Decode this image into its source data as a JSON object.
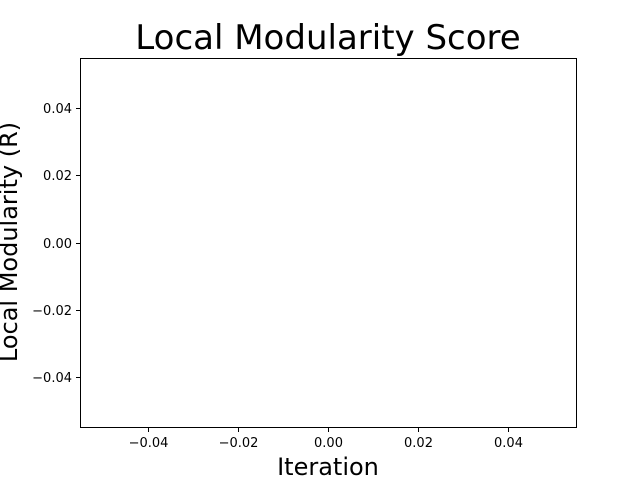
{
  "chart_data": {
    "type": "line",
    "title": "Local Modularity Score",
    "xlabel": "Iteration",
    "ylabel": "Local Modularity (R)",
    "xlim": [
      -0.055,
      0.055
    ],
    "ylim": [
      -0.055,
      0.055
    ],
    "x_ticks": [
      -0.04,
      -0.02,
      0.0,
      0.02,
      0.04
    ],
    "y_ticks": [
      -0.04,
      -0.02,
      0.0,
      0.02,
      0.04
    ],
    "x_tick_labels": [
      "−0.04",
      "−0.02",
      "0.00",
      "0.02",
      "0.04"
    ],
    "y_tick_labels": [
      "−0.04",
      "−0.02",
      "0.00",
      "0.02",
      "0.04"
    ],
    "grid": false,
    "series": [
      {
        "x": [],
        "y": []
      }
    ]
  }
}
